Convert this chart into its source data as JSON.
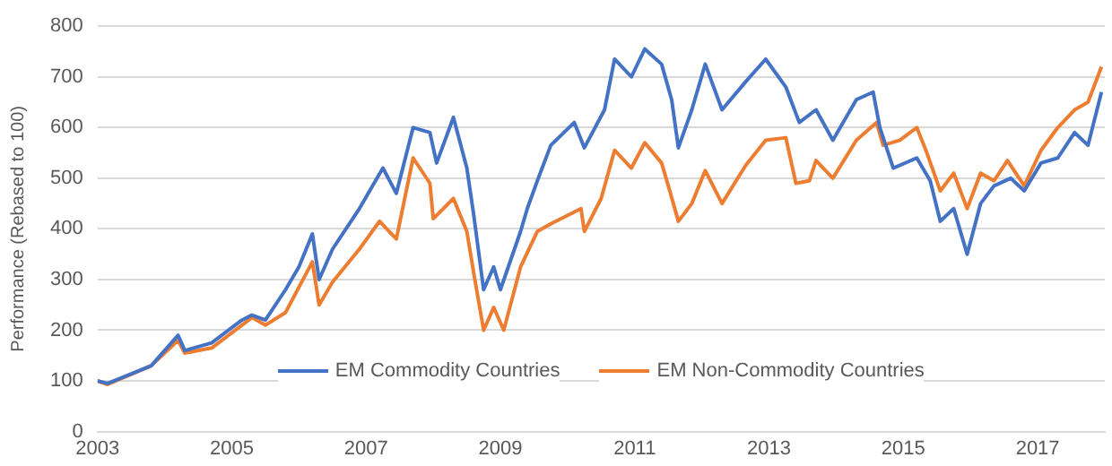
{
  "chart_data": {
    "type": "line",
    "ylabel": "Performance (Rebased to 100)",
    "xlim": [
      2003,
      2018
    ],
    "xticks": [
      2003,
      2005,
      2007,
      2009,
      2011,
      2013,
      2015,
      2017
    ],
    "ylim": [
      0,
      800
    ],
    "yticks": [
      0,
      100,
      200,
      300,
      400,
      500,
      600,
      700,
      800
    ],
    "grid": "y",
    "legend": "bottom",
    "marker": "none",
    "line_style": "solid",
    "series": [
      {
        "name": "EM Commodity Countries",
        "color": "#4472c4",
        "x": [
          2003,
          2003.15,
          2003.8,
          2004.2,
          2004.3,
          2004.7,
          2005.15,
          2005.3,
          2005.5,
          2005.8,
          2006,
          2006.2,
          2006.3,
          2006.5,
          2006.9,
          2007.25,
          2007.45,
          2007.7,
          2007.95,
          2008.05,
          2008.3,
          2008.5,
          2008.6,
          2008.75,
          2008.9,
          2009,
          2009.3,
          2009.4,
          2009.55,
          2009.75,
          2010.1,
          2010.25,
          2010.55,
          2010.7,
          2010.95,
          2011.15,
          2011.4,
          2011.55,
          2011.65,
          2011.85,
          2012.05,
          2012.3,
          2012.65,
          2012.95,
          2013.25,
          2013.45,
          2013.7,
          2013.95,
          2014.3,
          2014.55,
          2014.65,
          2014.85,
          2015.2,
          2015.4,
          2015.55,
          2015.75,
          2015.95,
          2016.15,
          2016.35,
          2016.6,
          2016.8,
          2017.05,
          2017.3,
          2017.55,
          2017.75,
          2017.95
        ],
        "values": [
          100,
          95,
          130,
          190,
          160,
          175,
          220,
          230,
          220,
          280,
          325,
          390,
          300,
          360,
          440,
          520,
          470,
          600,
          590,
          530,
          620,
          520,
          430,
          280,
          325,
          280,
          395,
          440,
          495,
          565,
          610,
          560,
          635,
          735,
          700,
          755,
          725,
          655,
          560,
          635,
          725,
          635,
          690,
          735,
          680,
          610,
          635,
          575,
          655,
          670,
          600,
          520,
          540,
          495,
          415,
          440,
          350,
          450,
          485,
          500,
          475,
          530,
          540,
          590,
          565,
          670
        ]
      },
      {
        "name": "EM Non-Commodity Countries",
        "color": "#ed7d31",
        "x": [
          2003,
          2003.15,
          2003.8,
          2004.2,
          2004.3,
          2004.7,
          2005.15,
          2005.3,
          2005.5,
          2005.8,
          2006,
          2006.2,
          2006.3,
          2006.5,
          2006.9,
          2007.2,
          2007.45,
          2007.7,
          2007.95,
          2008,
          2008.3,
          2008.5,
          2008.6,
          2008.75,
          2008.9,
          2009.05,
          2009.3,
          2009.55,
          2009.75,
          2010.05,
          2010.2,
          2010.25,
          2010.5,
          2010.7,
          2010.95,
          2011.15,
          2011.4,
          2011.5,
          2011.65,
          2011.85,
          2012.05,
          2012.3,
          2012.65,
          2012.95,
          2013.25,
          2013.4,
          2013.6,
          2013.7,
          2013.95,
          2014.3,
          2014.6,
          2014.7,
          2014.95,
          2015.2,
          2015.35,
          2015.55,
          2015.75,
          2015.95,
          2016.15,
          2016.35,
          2016.55,
          2016.8,
          2017.05,
          2017.3,
          2017.55,
          2017.75,
          2017.95
        ],
        "values": [
          100,
          93,
          130,
          180,
          155,
          165,
          210,
          225,
          210,
          235,
          285,
          335,
          250,
          295,
          360,
          415,
          380,
          540,
          490,
          420,
          460,
          395,
          315,
          200,
          245,
          200,
          325,
          395,
          410,
          430,
          440,
          395,
          460,
          555,
          520,
          570,
          530,
          485,
          415,
          450,
          515,
          450,
          525,
          575,
          580,
          490,
          495,
          535,
          500,
          575,
          610,
          565,
          575,
          600,
          550,
          475,
          510,
          440,
          510,
          495,
          535,
          485,
          555,
          600,
          635,
          650,
          720
        ]
      }
    ]
  }
}
